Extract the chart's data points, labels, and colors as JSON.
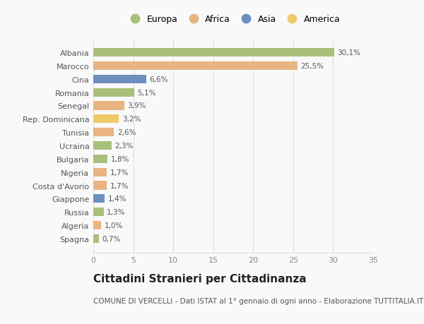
{
  "categories": [
    "Albania",
    "Marocco",
    "Cina",
    "Romania",
    "Senegal",
    "Rep. Dominicana",
    "Tunisia",
    "Ucraina",
    "Bulgaria",
    "Nigeria",
    "Costa d'Avorio",
    "Giappone",
    "Russia",
    "Algeria",
    "Spagna"
  ],
  "values": [
    30.1,
    25.5,
    6.6,
    5.1,
    3.9,
    3.2,
    2.6,
    2.3,
    1.8,
    1.7,
    1.7,
    1.4,
    1.3,
    1.0,
    0.7
  ],
  "labels": [
    "30,1%",
    "25,5%",
    "6,6%",
    "5,1%",
    "3,9%",
    "3,2%",
    "2,6%",
    "2,3%",
    "1,8%",
    "1,7%",
    "1,7%",
    "1,4%",
    "1,3%",
    "1,0%",
    "0,7%"
  ],
  "continents": [
    "Europa",
    "Africa",
    "Asia",
    "Europa",
    "Africa",
    "America",
    "Africa",
    "Europa",
    "Europa",
    "Africa",
    "Africa",
    "Asia",
    "Europa",
    "Africa",
    "Europa"
  ],
  "continent_colors": {
    "Europa": "#a8c07a",
    "Africa": "#e8b483",
    "Asia": "#6b8fbf",
    "America": "#f0c96a"
  },
  "legend_order": [
    "Europa",
    "Africa",
    "Asia",
    "America"
  ],
  "title": "Cittadini Stranieri per Cittadinanza",
  "subtitle": "COMUNE DI VERCELLI - Dati ISTAT al 1° gennaio di ogni anno - Elaborazione TUTTITALIA.IT",
  "xlim": [
    0,
    35
  ],
  "xticks": [
    0,
    5,
    10,
    15,
    20,
    25,
    30,
    35
  ],
  "background_color": "#f9f9f9",
  "grid_color": "#dddddd",
  "bar_height": 0.65
}
